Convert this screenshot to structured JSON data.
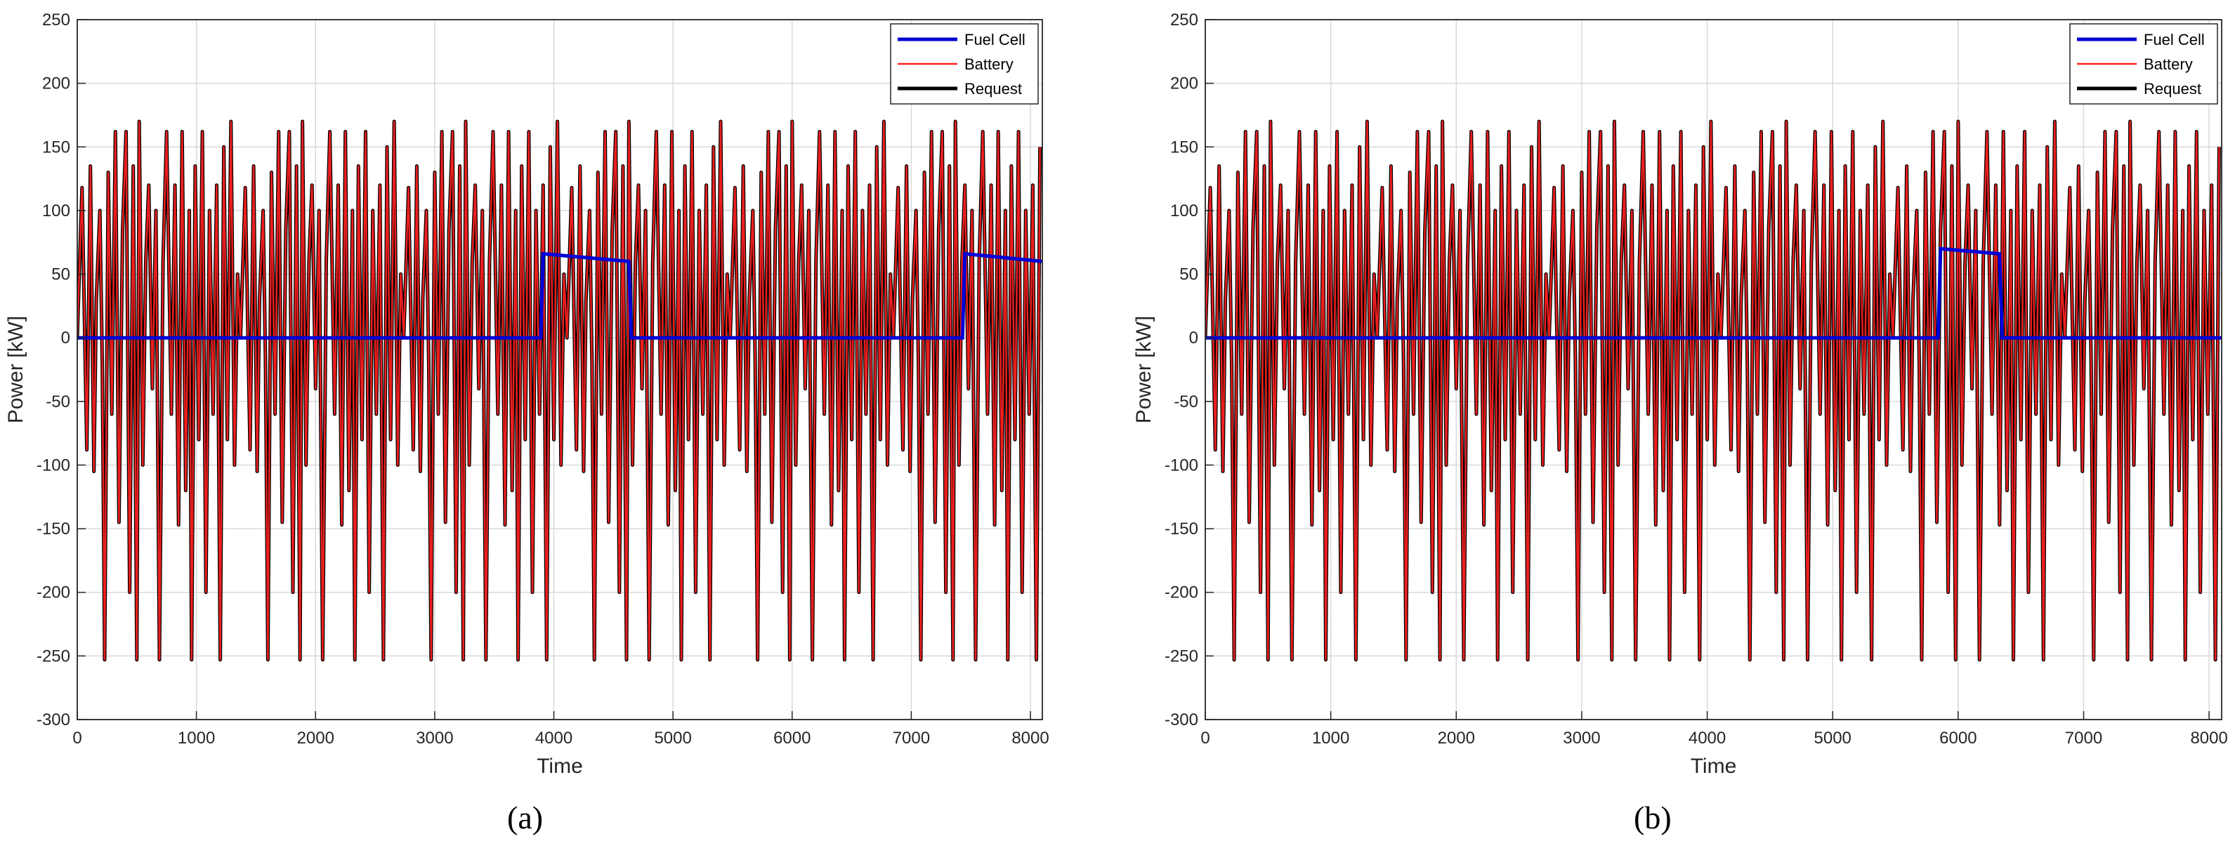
{
  "figure": {
    "panel_labels": [
      "(a)",
      "(b)"
    ]
  },
  "chart_data": [
    {
      "type": "line",
      "panel": "(a)",
      "xlabel": "Time",
      "ylabel": "Power [kW]",
      "xlim": [
        0,
        8100
      ],
      "ylim": [
        -300,
        250
      ],
      "xticks": [
        0,
        1000,
        2000,
        3000,
        4000,
        5000,
        6000,
        7000,
        8000
      ],
      "yticks": [
        250,
        200,
        150,
        100,
        50,
        0,
        -50,
        -100,
        -150,
        -200,
        -250,
        -300
      ],
      "grid": true,
      "legend_position": "top-right",
      "series": [
        {
          "name": "Fuel Cell",
          "color": "#0000d6",
          "x": [
            0,
            3890,
            3910,
            4630,
            4650,
            7430,
            7450,
            8100
          ],
          "values": [
            0,
            0,
            66,
            60,
            0,
            0,
            66,
            60
          ]
        },
        {
          "name": "Battery",
          "color": "#ff2222",
          "note_cycle": "repeating driving cycle, period 1370",
          "cycle_x": [
            0,
            40,
            80,
            110,
            140,
            160,
            190,
            210,
            230,
            260,
            290,
            320,
            350,
            380,
            410,
            440,
            470,
            500,
            520,
            550,
            575,
            600,
            630,
            660,
            690,
            720,
            750,
            790,
            820,
            850,
            880,
            910,
            940,
            960,
            990,
            1020,
            1050,
            1080,
            1110,
            1140,
            1170,
            1200,
            1230,
            1260,
            1290,
            1320,
            1345,
            1370
          ],
          "cycle_values": [
            0,
            118,
            -88,
            135,
            -105,
            30,
            100,
            -20,
            -253,
            130,
            -60,
            162,
            -145,
            85,
            162,
            -200,
            135,
            -253,
            170,
            -100,
            60,
            120,
            -40,
            100,
            -253,
            60,
            162,
            -60,
            120,
            -147,
            162,
            -120,
            100,
            -253,
            135,
            -80,
            162,
            -200,
            100,
            -60,
            120,
            -253,
            150,
            -80,
            170,
            -100,
            50,
            0
          ]
        },
        {
          "name": "Request",
          "color": "#000000"
        }
      ]
    },
    {
      "type": "line",
      "panel": "(b)",
      "xlabel": "Time",
      "ylabel": "Power [kW]",
      "xlim": [
        0,
        8100
      ],
      "ylim": [
        -300,
        250
      ],
      "xticks": [
        0,
        1000,
        2000,
        3000,
        4000,
        5000,
        6000,
        7000,
        8000
      ],
      "yticks": [
        250,
        200,
        150,
        100,
        50,
        0,
        -50,
        -100,
        -150,
        -200,
        -250,
        -300
      ],
      "grid": true,
      "legend_position": "top-right",
      "series": [
        {
          "name": "Fuel Cell",
          "color": "#0000d6",
          "x": [
            0,
            5840,
            5860,
            6330,
            6350,
            8100
          ],
          "values": [
            0,
            0,
            70,
            66,
            0,
            0
          ]
        },
        {
          "name": "Battery",
          "color": "#ff2222",
          "cycle_x": [
            0,
            40,
            80,
            110,
            140,
            160,
            190,
            210,
            230,
            260,
            290,
            320,
            350,
            380,
            410,
            440,
            470,
            500,
            520,
            550,
            575,
            600,
            630,
            660,
            690,
            720,
            750,
            790,
            820,
            850,
            880,
            910,
            940,
            960,
            990,
            1020,
            1050,
            1080,
            1110,
            1140,
            1170,
            1200,
            1230,
            1260,
            1290,
            1320,
            1345,
            1370
          ],
          "cycle_values": [
            0,
            118,
            -88,
            135,
            -105,
            30,
            100,
            -20,
            -253,
            130,
            -60,
            162,
            -145,
            85,
            162,
            -200,
            135,
            -253,
            170,
            -100,
            60,
            120,
            -40,
            100,
            -253,
            60,
            162,
            -60,
            120,
            -147,
            162,
            -120,
            100,
            -253,
            135,
            -80,
            162,
            -200,
            100,
            -60,
            120,
            -253,
            150,
            -80,
            170,
            -100,
            50,
            0
          ]
        },
        {
          "name": "Request",
          "color": "#000000"
        }
      ]
    }
  ]
}
